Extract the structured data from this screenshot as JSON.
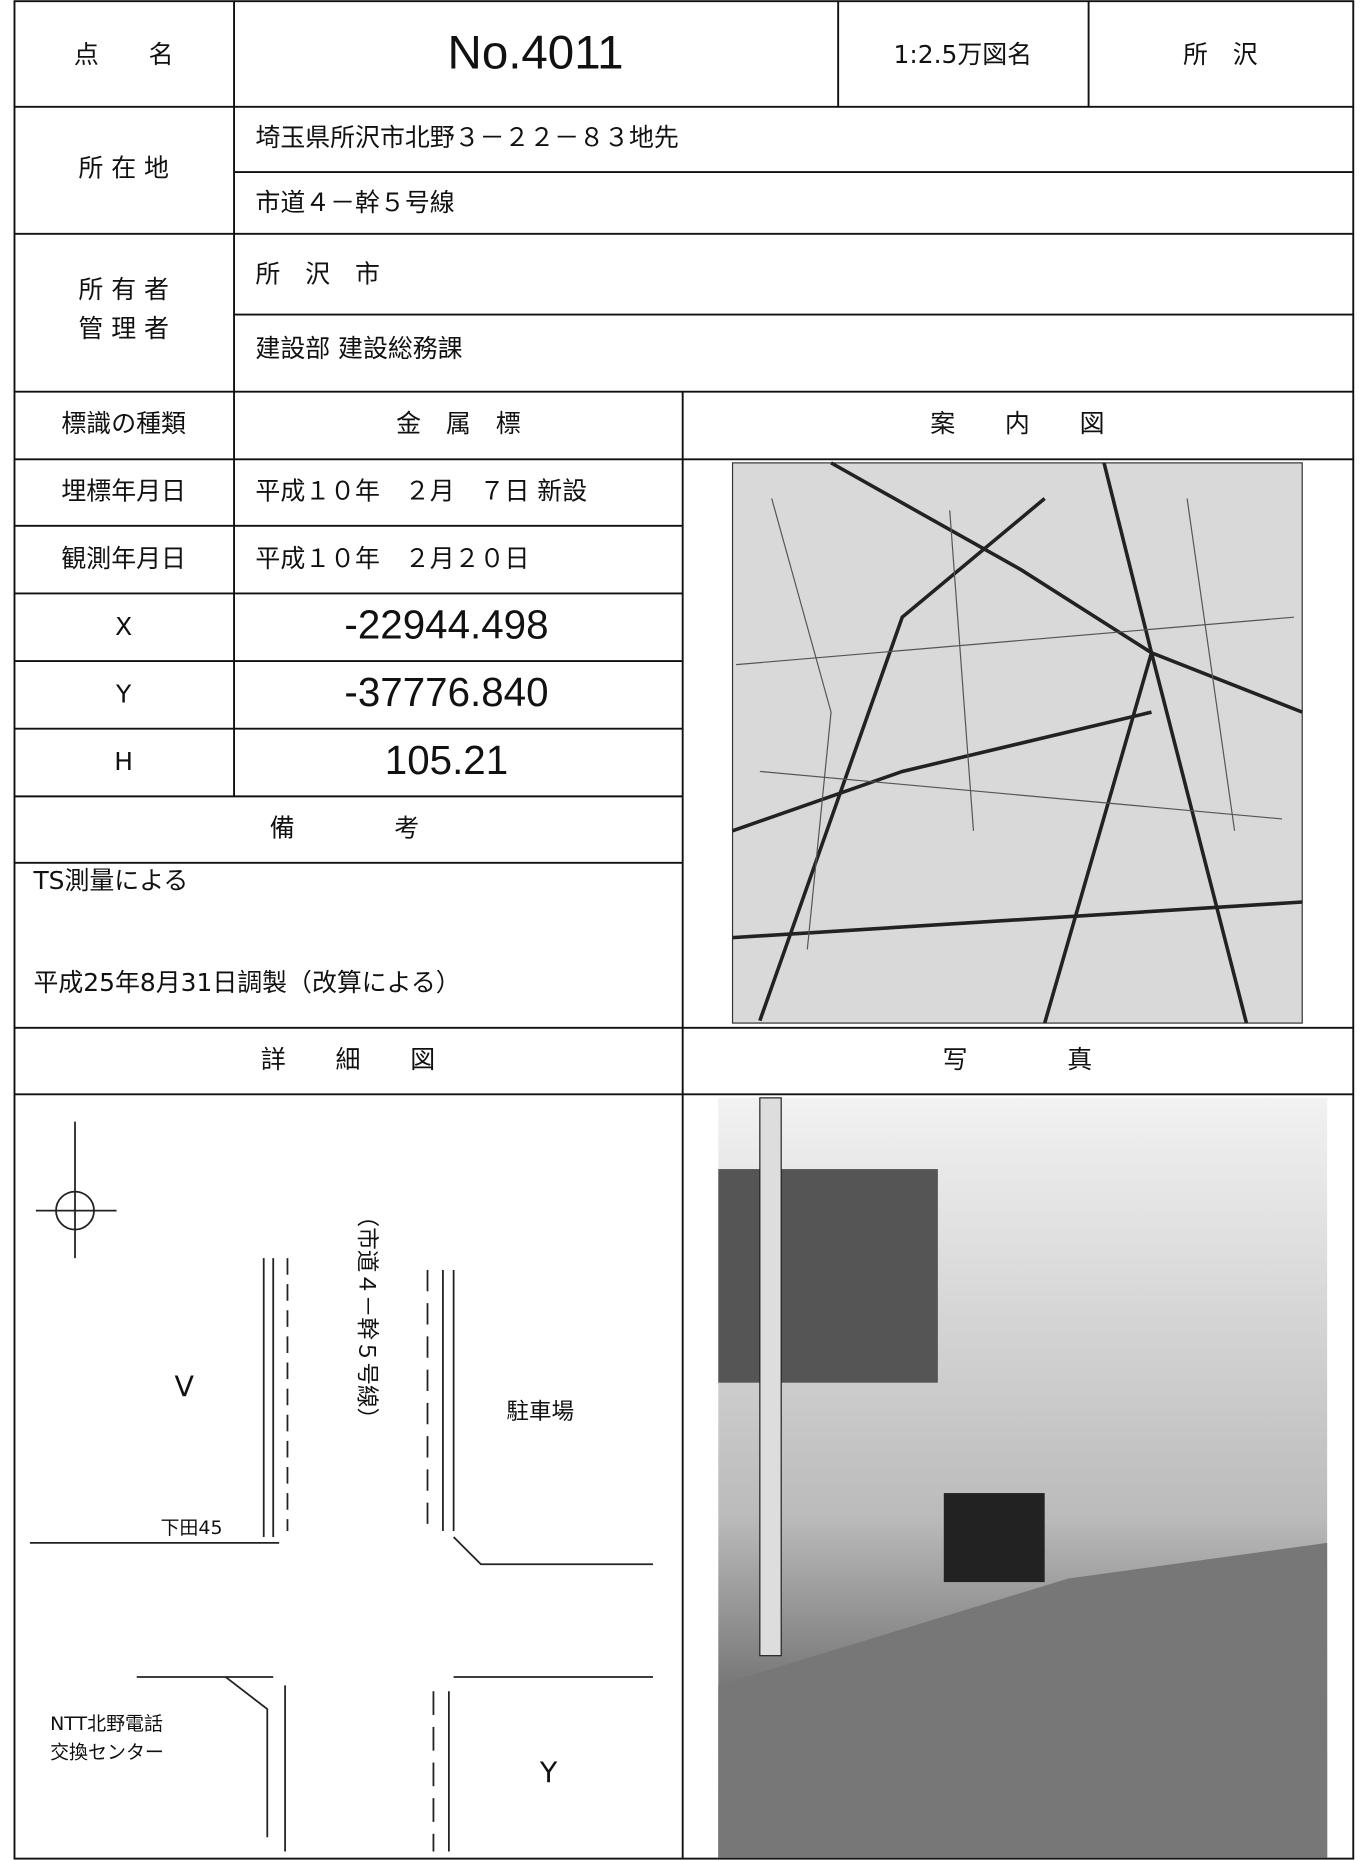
{
  "header": {
    "point_name_label": "点　　名",
    "point_number": "No.4011",
    "map_sheet_label": "1:2.5万図名",
    "map_sheet": "所　沢"
  },
  "location": {
    "label": "所 在 地",
    "lines": [
      "埼玉県所沢市北野３－２２－８３地先",
      "市道４－幹５号線"
    ]
  },
  "owner": {
    "labels": [
      "所 有 者",
      "管 理 者"
    ],
    "lines": [
      "所　沢　市",
      "建設部 建設総務課"
    ]
  },
  "sign_type": {
    "label": "標識の種類",
    "value": "金　属　標"
  },
  "guide_map_label": "案　　内　　図",
  "rows": [
    [
      "埋標年月日",
      "平成１０年　２月　７日 新設"
    ],
    [
      "観測年月日",
      "平成１０年　２月２０日"
    ],
    [
      "X",
      "-22944.498"
    ],
    [
      "Y",
      "-37776.840"
    ],
    [
      "H",
      "105.21"
    ]
  ],
  "remarks": {
    "label": "備　　　　考",
    "lines": [
      "TS測量による",
      "平成25年8月31日調製（改算による）"
    ]
  },
  "detail_label": "詳　　細　　図",
  "photo_label": "写　　　　真",
  "diagram": {
    "road": "（市道４－幹５号線）",
    "parking": "駐車場",
    "manhole": "下田45",
    "center": [
      "NTT北野電話",
      "交換センター"
    ],
    "symbols": [
      "V",
      "Y"
    ]
  }
}
